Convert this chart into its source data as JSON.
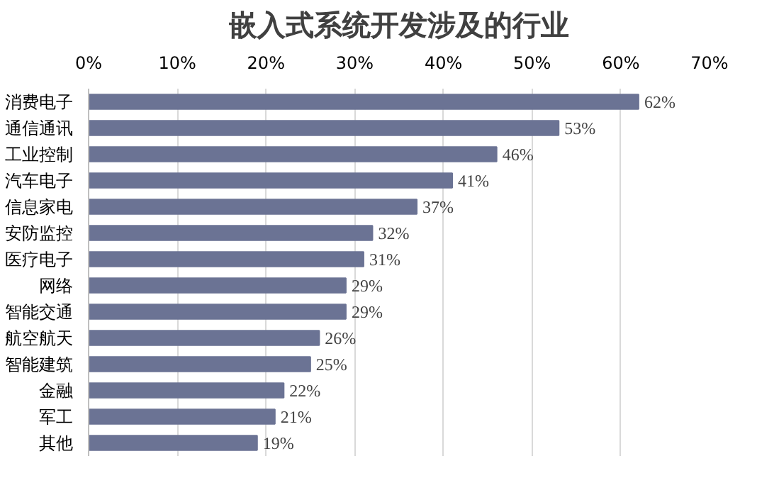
{
  "chart_data": {
    "type": "bar",
    "orientation": "horizontal",
    "title": "嵌入式系统开发涉及的行业",
    "categories": [
      "消费电子",
      "通信通讯",
      "工业控制",
      "汽车电子",
      "信息家电",
      "安防监控",
      "医疗电子",
      "网络",
      "智能交通",
      "航空航天",
      "智能建筑",
      "金融",
      "军工",
      "其他"
    ],
    "values": [
      62,
      53,
      46,
      41,
      37,
      32,
      31,
      29,
      29,
      26,
      25,
      22,
      21,
      19
    ],
    "value_labels": [
      "62%",
      "53%",
      "46%",
      "41%",
      "37%",
      "32%",
      "31%",
      "29%",
      "29%",
      "26%",
      "25%",
      "22%",
      "21%",
      "19%"
    ],
    "color": "#6b7394",
    "xlim": [
      0,
      70
    ],
    "xticks": [
      {
        "value": 0,
        "label": "0%"
      },
      {
        "value": 10,
        "label": "10%"
      },
      {
        "value": 20,
        "label": "20%"
      },
      {
        "value": 30,
        "label": "30%"
      },
      {
        "value": 40,
        "label": "40%"
      },
      {
        "value": 50,
        "label": "50%"
      },
      {
        "value": 60,
        "label": "60%"
      },
      {
        "value": 70,
        "label": "70%"
      }
    ],
    "grid": "x"
  }
}
